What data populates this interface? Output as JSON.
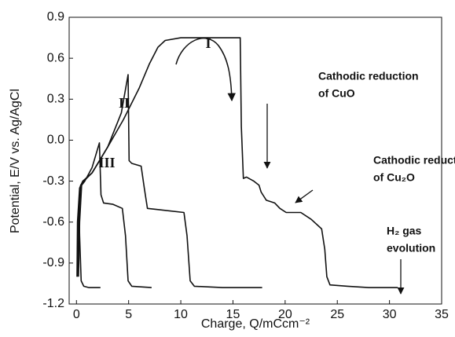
{
  "chart_data": {
    "type": "line",
    "xlabel": "Charge, Q/mCcm⁻²",
    "ylabel": "Potential, E/V vs. Ag/AgCl",
    "xlim": [
      -0.7,
      35
    ],
    "xticks": [
      0,
      5,
      10,
      15,
      20,
      25,
      30,
      35
    ],
    "ylim": [
      -1.2,
      0.9
    ],
    "yticks": [
      0.9,
      0.6,
      0.3,
      {
        "value": 0,
        "label": "0.0"
      },
      -0.3,
      -0.6,
      -0.9,
      -1.2
    ],
    "color": "#111111",
    "series": [
      {
        "name": "I",
        "x": [
          0.05,
          0.1,
          0.3,
          0.6,
          1.5,
          3,
          4.5,
          6,
          7,
          7.8,
          8.5,
          10,
          13,
          15.7,
          15.8,
          16,
          16.3,
          17,
          17.5,
          17.7,
          18.2,
          19,
          19.5,
          20.1,
          21.5,
          22.5,
          23.5,
          23.8,
          24,
          24.3,
          26,
          28,
          30.8
        ],
        "values": [
          -1.0,
          -0.6,
          -0.35,
          -0.3,
          -0.24,
          -0.05,
          0.15,
          0.38,
          0.56,
          0.68,
          0.73,
          0.75,
          0.75,
          0.75,
          0.1,
          -0.28,
          -0.27,
          -0.3,
          -0.33,
          -0.38,
          -0.44,
          -0.46,
          -0.5,
          -0.53,
          -0.53,
          -0.58,
          -0.65,
          -0.8,
          -1.0,
          -1.06,
          -1.07,
          -1.08,
          -1.08
        ]
      },
      {
        "name": "II",
        "x": [
          0.1,
          0.2,
          0.4,
          0.7,
          1.5,
          3,
          4.3,
          4.95,
          5.05,
          5.3,
          6.2,
          6.5,
          6.8,
          8,
          10.3,
          10.6,
          10.9,
          11.3,
          14,
          17.8
        ],
        "values": [
          -1.0,
          -0.6,
          -0.33,
          -0.3,
          -0.24,
          -0.05,
          0.2,
          0.48,
          -0.15,
          -0.17,
          -0.19,
          -0.35,
          -0.5,
          -0.51,
          -0.53,
          -0.7,
          -1.03,
          -1.07,
          -1.08,
          -1.08
        ]
      },
      {
        "name": "III",
        "x": [
          0.2,
          0.3,
          0.5,
          0.8,
          1.5,
          2.2,
          2.35,
          2.6,
          3.5,
          4.4,
          4.7,
          4.95,
          5.3,
          7.2
        ],
        "values": [
          -1.0,
          -0.6,
          -0.33,
          -0.3,
          -0.2,
          -0.02,
          -0.4,
          -0.46,
          -0.47,
          -0.5,
          -0.7,
          -1.03,
          -1.07,
          -1.08
        ]
      },
      {
        "x": [
          0.25,
          0.3,
          0.45,
          0.7,
          1.2,
          2.3
        ],
        "values": [
          -0.5,
          -0.7,
          -1.03,
          -1.07,
          -1.08,
          -1.08
        ]
      }
    ],
    "annotations": [
      {
        "text": [
          "Cathodic reduction",
          "of CuO"
        ]
      },
      {
        "text": [
          "Cathodic reduction",
          "of Cu₂O"
        ]
      },
      {
        "text": [
          "H₂ gas",
          "evolution"
        ]
      }
    ]
  }
}
